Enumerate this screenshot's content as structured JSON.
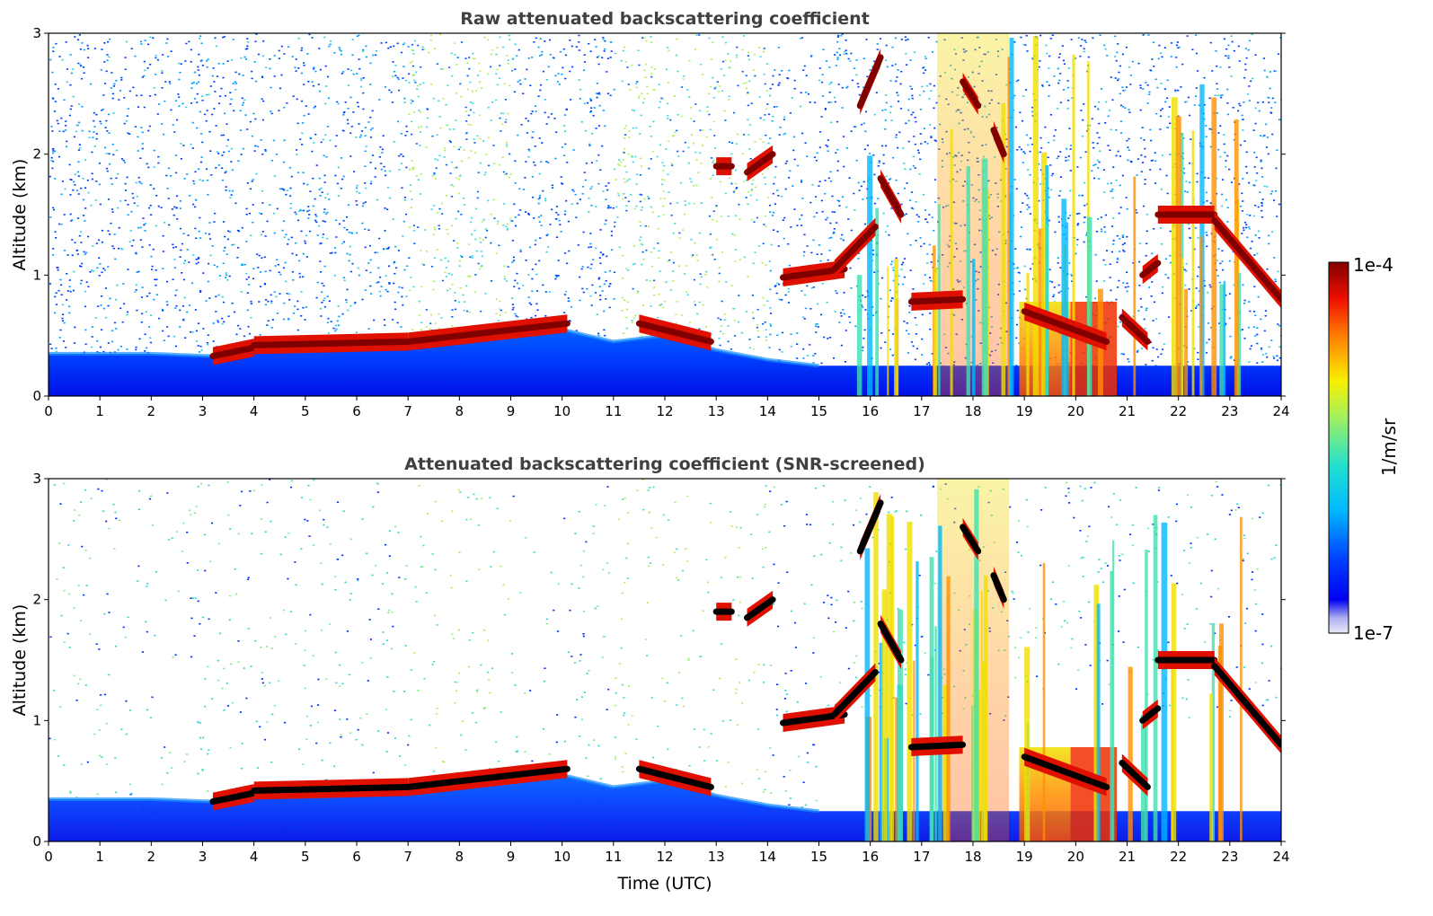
{
  "chart_data": [
    {
      "type": "heatmap",
      "title": "Raw attenuated backscattering coefficient",
      "xlabel": "",
      "ylabel": "Altitude (km)",
      "xlim": [
        0,
        24
      ],
      "ylim": [
        0,
        3
      ],
      "x_ticks": [
        "0",
        "1",
        "2",
        "3",
        "4",
        "5",
        "6",
        "7",
        "8",
        "9",
        "10",
        "11",
        "12",
        "13",
        "14",
        "15",
        "16",
        "17",
        "18",
        "19",
        "20",
        "21",
        "22",
        "23",
        "24"
      ],
      "y_ticks": [
        "0",
        "1",
        "2",
        "3"
      ],
      "screened": false
    },
    {
      "type": "heatmap",
      "title": "Attenuated backscattering coefficient (SNR-screened)",
      "xlabel": "Time (UTC)",
      "ylabel": "Altitude (km)",
      "xlim": [
        0,
        24
      ],
      "ylim": [
        0,
        3
      ],
      "x_ticks": [
        "0",
        "1",
        "2",
        "3",
        "4",
        "5",
        "6",
        "7",
        "8",
        "9",
        "10",
        "11",
        "12",
        "13",
        "14",
        "15",
        "16",
        "17",
        "18",
        "19",
        "20",
        "21",
        "22",
        "23",
        "24"
      ],
      "y_ticks": [
        "0",
        "1",
        "2",
        "3"
      ],
      "screened": true
    }
  ],
  "colorbar": {
    "label": "1/m/sr",
    "max_label": "1e-4",
    "min_label": "1e-7",
    "scale": "log",
    "range": [
      1e-07,
      0.0001
    ],
    "colormap": "jet"
  },
  "features": {
    "boundary_layer_top": [
      {
        "t": 0,
        "h": 0.35
      },
      {
        "t": 2.0,
        "h": 0.35
      },
      {
        "t": 3.2,
        "h": 0.33
      },
      {
        "t": 4.0,
        "h": 0.38
      },
      {
        "t": 5.0,
        "h": 0.45
      },
      {
        "t": 6.0,
        "h": 0.45
      },
      {
        "t": 7.0,
        "h": 0.42
      },
      {
        "t": 8.0,
        "h": 0.5
      },
      {
        "t": 9.0,
        "h": 0.55
      },
      {
        "t": 10.0,
        "h": 0.55
      },
      {
        "t": 11.0,
        "h": 0.45
      },
      {
        "t": 12.0,
        "h": 0.5
      },
      {
        "t": 13.0,
        "h": 0.38
      },
      {
        "t": 14.0,
        "h": 0.3
      },
      {
        "t": 15.0,
        "h": 0.25
      },
      {
        "t": 24.0,
        "h": 0.25
      }
    ],
    "cloud_layers": [
      {
        "t0": 3.2,
        "t1": 4.0,
        "h0": 0.33,
        "h1": 0.4
      },
      {
        "t0": 4.0,
        "t1": 7.0,
        "h0": 0.42,
        "h1": 0.45
      },
      {
        "t0": 7.0,
        "t1": 10.1,
        "h0": 0.45,
        "h1": 0.6
      },
      {
        "t0": 11.5,
        "t1": 12.9,
        "h0": 0.6,
        "h1": 0.45
      },
      {
        "t0": 13.0,
        "t1": 13.3,
        "h0": 1.9,
        "h1": 1.9
      },
      {
        "t0": 13.6,
        "t1": 14.1,
        "h0": 1.85,
        "h1": 2.0
      },
      {
        "t0": 14.3,
        "t1": 15.5,
        "h0": 0.98,
        "h1": 1.05
      },
      {
        "t0": 15.3,
        "t1": 16.1,
        "h0": 1.05,
        "h1": 1.4
      },
      {
        "t0": 15.8,
        "t1": 16.2,
        "h0": 2.4,
        "h1": 2.8
      },
      {
        "t0": 16.2,
        "t1": 16.6,
        "h0": 1.8,
        "h1": 1.5
      },
      {
        "t0": 16.8,
        "t1": 17.8,
        "h0": 0.78,
        "h1": 0.8
      },
      {
        "t0": 17.8,
        "t1": 18.1,
        "h0": 2.6,
        "h1": 2.4
      },
      {
        "t0": 18.4,
        "t1": 18.6,
        "h0": 2.2,
        "h1": 2.0
      },
      {
        "t0": 19.0,
        "t1": 20.6,
        "h0": 0.7,
        "h1": 0.45
      },
      {
        "t0": 20.9,
        "t1": 21.4,
        "h0": 0.65,
        "h1": 0.45
      },
      {
        "t0": 21.3,
        "t1": 21.6,
        "h0": 1.0,
        "h1": 1.1
      },
      {
        "t0": 21.6,
        "t1": 22.7,
        "h0": 1.5,
        "h1": 1.5
      },
      {
        "t0": 22.7,
        "t1": 24.0,
        "h0": 1.45,
        "h1": 0.8
      }
    ],
    "precip_columns": [
      {
        "t0": 17.3,
        "t1": 18.7
      },
      {
        "t0": 18.9,
        "t1": 19.9
      },
      {
        "t0": 19.9,
        "t1": 20.8
      }
    ],
    "high_noise_windows": [
      {
        "t0": 7.0,
        "t1": 9.0
      },
      {
        "t0": 11.0,
        "t1": 14.0
      }
    ]
  }
}
